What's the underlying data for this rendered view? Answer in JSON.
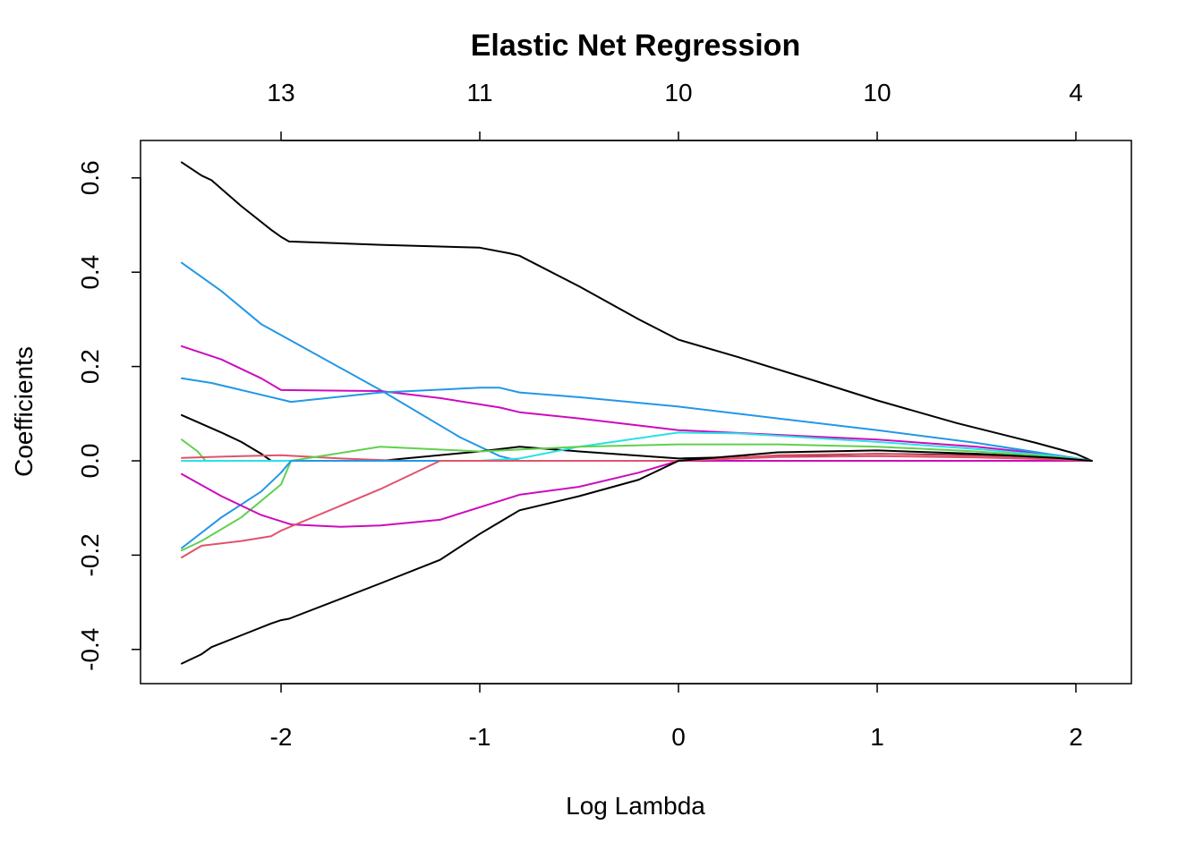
{
  "chart_data": {
    "type": "line",
    "title": "Elastic Net Regression",
    "xlabel": "Log Lambda",
    "ylabel": "Coefficients",
    "xlim": [
      -2.7,
      2.3
    ],
    "ylim": [
      -0.47,
      0.67
    ],
    "x_ticks": [
      -2,
      -1,
      0,
      1,
      2
    ],
    "x_tick_labels": [
      "-2",
      "-1",
      "0",
      "1",
      "2"
    ],
    "y_ticks": [
      -0.4,
      -0.2,
      0.0,
      0.2,
      0.4,
      0.6
    ],
    "y_tick_labels": [
      "-0.4",
      "-0.2",
      "0.0",
      "0.2",
      "0.4",
      "0.6"
    ],
    "top_axis": {
      "ticks": [
        -2,
        -1,
        0,
        1,
        2
      ],
      "labels": [
        "13",
        "11",
        "10",
        "10",
        "4"
      ]
    },
    "grid": false,
    "legend": "none",
    "series": [
      {
        "color": "#000000",
        "x": [
          -2.5,
          -2.4,
          -2.35,
          -2.2,
          -2.05,
          -2.0,
          -1.96,
          -1.5,
          -1.0,
          -0.85,
          -0.8,
          -0.5,
          -0.2,
          0.0,
          0.3,
          0.7,
          1.0,
          1.4,
          1.8,
          2.0,
          2.08
        ],
        "y": [
          0.633,
          0.605,
          0.595,
          0.54,
          0.49,
          0.475,
          0.465,
          0.458,
          0.452,
          0.44,
          0.435,
          0.37,
          0.3,
          0.257,
          0.22,
          0.168,
          0.128,
          0.08,
          0.038,
          0.015,
          0.0
        ]
      },
      {
        "color": "#2297E6",
        "x": [
          -2.5,
          -2.3,
          -2.1,
          -1.95,
          -1.5,
          -1.1,
          -0.9,
          -0.8,
          -0.5,
          0.0,
          0.5,
          1.0,
          1.5,
          1.9,
          2.08
        ],
        "y": [
          0.42,
          0.36,
          0.29,
          0.255,
          0.15,
          0.05,
          0.01,
          0.0,
          0.0,
          0.0,
          0.0,
          0.0,
          0.0,
          0.0,
          0.0
        ]
      },
      {
        "color": "#CD0BBC",
        "x": [
          -2.5,
          -2.3,
          -2.1,
          -2.0,
          -1.5,
          -1.2,
          -0.9,
          -0.8,
          -0.5,
          0.0,
          0.5,
          1.0,
          1.5,
          1.9,
          2.08
        ],
        "y": [
          0.243,
          0.215,
          0.175,
          0.15,
          0.148,
          0.133,
          0.113,
          0.103,
          0.09,
          0.065,
          0.055,
          0.045,
          0.03,
          0.012,
          0.0
        ]
      },
      {
        "color": "#2297E6",
        "x": [
          -2.5,
          -2.35,
          -2.1,
          -1.95,
          -1.5,
          -1.0,
          -0.9,
          -0.8,
          -0.5,
          0.0,
          0.5,
          1.0,
          1.5,
          1.9,
          2.08
        ],
        "y": [
          0.175,
          0.165,
          0.14,
          0.125,
          0.145,
          0.155,
          0.155,
          0.145,
          0.135,
          0.115,
          0.09,
          0.065,
          0.038,
          0.012,
          0.0
        ]
      },
      {
        "color": "#000000",
        "x": [
          -2.5,
          -2.3,
          -2.2,
          -2.1,
          -2.05,
          -1.5,
          -1.0,
          -0.8,
          -0.5,
          0.0,
          0.5,
          1.0,
          1.5,
          1.9,
          2.08
        ],
        "y": [
          0.097,
          0.06,
          0.04,
          0.015,
          0.0,
          0.0,
          0.02,
          0.03,
          0.02,
          0.005,
          0.01,
          0.015,
          0.012,
          0.004,
          0.0
        ]
      },
      {
        "color": "#61D04F",
        "x": [
          -2.5,
          -2.42,
          -2.38,
          -2.2,
          -2.0,
          -1.5,
          -1.0,
          -0.5,
          0.0,
          0.5,
          1.0,
          1.5,
          1.9,
          2.08
        ],
        "y": [
          0.045,
          0.02,
          0.0,
          0.0,
          0.0,
          0.0,
          0.0,
          0.0,
          0.0,
          0.0,
          0.0,
          0.0,
          0.0,
          0.0
        ]
      },
      {
        "color": "#DF536B",
        "x": [
          -2.5,
          -2.2,
          -2.0,
          -1.7,
          -1.4,
          -1.2,
          -1.0,
          0.0,
          0.5,
          1.0,
          1.5,
          1.9,
          2.08
        ],
        "y": [
          0.006,
          0.01,
          0.012,
          0.005,
          0.0,
          0.0,
          0.0,
          0.0,
          0.012,
          0.015,
          0.01,
          0.004,
          0.0
        ]
      },
      {
        "color": "#28E2E5",
        "x": [
          -2.5,
          -2.0,
          -1.5,
          -1.0,
          -0.8,
          -0.5,
          0.0,
          0.3,
          0.7,
          1.0,
          1.5,
          1.9,
          2.08
        ],
        "y": [
          0.0,
          0.0,
          0.0,
          0.0,
          0.005,
          0.03,
          0.06,
          0.058,
          0.048,
          0.04,
          0.025,
          0.01,
          0.0
        ]
      },
      {
        "color": "#61D04F",
        "x": [
          -2.5,
          -2.4,
          -2.2,
          -2.0,
          -1.95,
          -1.5,
          -1.0,
          -0.5,
          0.0,
          0.5,
          1.0,
          1.5,
          1.9,
          2.08
        ],
        "y": [
          -0.19,
          -0.17,
          -0.12,
          -0.05,
          0.0,
          0.03,
          0.02,
          0.03,
          0.035,
          0.035,
          0.03,
          0.02,
          0.008,
          0.0
        ]
      },
      {
        "color": "#2297E6",
        "x": [
          -2.5,
          -2.3,
          -2.1,
          -2.0,
          -1.95,
          -1.5,
          -1.0,
          -0.5,
          0.0,
          0.5,
          1.0,
          1.5,
          1.9,
          2.08
        ],
        "y": [
          -0.185,
          -0.12,
          -0.065,
          -0.025,
          0.0,
          0.0,
          0.0,
          0.0,
          0.0,
          0.0,
          0.0,
          0.0,
          0.0,
          0.0
        ]
      },
      {
        "color": "#CD0BBC",
        "x": [
          -2.5,
          -2.3,
          -2.1,
          -1.95,
          -1.7,
          -1.5,
          -1.2,
          -0.8,
          -0.5,
          -0.2,
          0.0,
          0.5,
          1.0,
          1.5,
          1.9,
          2.08
        ],
        "y": [
          -0.028,
          -0.075,
          -0.115,
          -0.135,
          -0.14,
          -0.137,
          -0.125,
          -0.072,
          -0.055,
          -0.025,
          0.0,
          0.0,
          0.0,
          0.0,
          0.0,
          0.0
        ]
      },
      {
        "color": "#DF536B",
        "x": [
          -2.5,
          -2.4,
          -2.2,
          -2.05,
          -2.0,
          -1.5,
          -1.2,
          -1.0,
          0.0,
          0.5,
          1.0,
          1.5,
          1.9,
          2.08
        ],
        "y": [
          -0.205,
          -0.18,
          -0.17,
          -0.16,
          -0.148,
          -0.06,
          0.0,
          0.0,
          0.0,
          0.008,
          0.01,
          0.007,
          0.003,
          0.0
        ]
      },
      {
        "color": "#000000",
        "x": [
          -2.5,
          -2.4,
          -2.35,
          -2.2,
          -2.05,
          -2.0,
          -1.96,
          -1.5,
          -1.2,
          -1.0,
          -0.9,
          -0.8,
          -0.5,
          -0.2,
          0.0,
          0.5,
          1.0,
          1.5,
          1.9,
          2.08
        ],
        "y": [
          -0.43,
          -0.41,
          -0.395,
          -0.37,
          -0.345,
          -0.338,
          -0.335,
          -0.26,
          -0.21,
          -0.155,
          -0.13,
          -0.105,
          -0.075,
          -0.04,
          0.0,
          0.018,
          0.022,
          0.015,
          0.006,
          0.0
        ]
      }
    ]
  }
}
